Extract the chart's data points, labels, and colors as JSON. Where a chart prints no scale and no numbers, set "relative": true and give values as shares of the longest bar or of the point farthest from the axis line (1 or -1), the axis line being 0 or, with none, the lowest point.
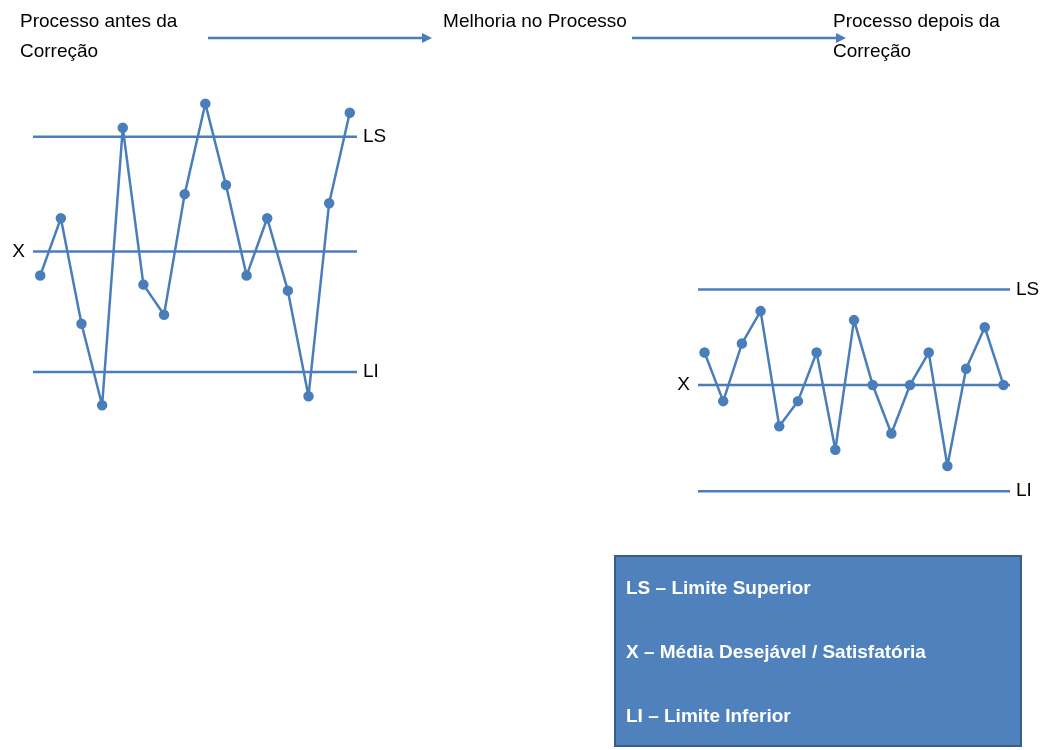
{
  "chart_data": [
    {
      "type": "line",
      "title": "Processo antes da Correção",
      "relative": true,
      "marker": "circle",
      "tick_labels": false,
      "legend": false,
      "categories": [
        null,
        null,
        null,
        null,
        null,
        null,
        null,
        null,
        null,
        null,
        null,
        null,
        null,
        null,
        null,
        null
      ],
      "series": [
        {
          "color": "#4a7ebb",
          "values": [
            0.43,
            0.62,
            0.27,
            0,
            0.92,
            0.4,
            0.3,
            0.7,
            1,
            0.73,
            0.43,
            0.62,
            0.38,
            0.03,
            0.67,
            0.97
          ]
        }
      ],
      "ref_lines": [
        {
          "axis": "y",
          "value": 0.89,
          "label": "LS",
          "color": "#4a7ebb"
        },
        {
          "axis": "y",
          "value": 0.51,
          "label": "X",
          "color": "#4a7ebb"
        },
        {
          "axis": "y",
          "value": 0.11,
          "label": "LI",
          "color": "#4a7ebb"
        }
      ]
    },
    {
      "type": "line",
      "title": "Processo depois da Correção",
      "relative": true,
      "marker": "circle",
      "tick_labels": false,
      "legend": false,
      "categories": [
        null,
        null,
        null,
        null,
        null,
        null,
        null,
        null,
        null,
        null,
        null,
        null,
        null,
        null,
        null,
        null,
        null
      ],
      "series": [
        {
          "color": "#4a7ebb",
          "values": [
            0.77,
            0.5,
            0.82,
            1,
            0.36,
            0.5,
            0.77,
            0.23,
            0.95,
            0.59,
            0.32,
            0.59,
            0.77,
            0.14,
            0.68,
            0.91,
            0.59
          ]
        }
      ],
      "ref_lines": [
        {
          "axis": "y",
          "value": 1.12,
          "label": "LS",
          "color": "#4a7ebb"
        },
        {
          "axis": "y",
          "value": 0.59,
          "label": "X",
          "color": "#4a7ebb"
        },
        {
          "axis": "y",
          "value": 0,
          "label": "LI",
          "color": "#4a7ebb"
        }
      ]
    },
    {
      "type": "other",
      "annotations": [
        "Melhoria no Processo"
      ]
    },
    {
      "type": "other",
      "annotations": [
        "LS – Limite Superior",
        "X – Média Desejável / Satisfatória",
        "LI – Limite Inferior"
      ]
    }
  ]
}
